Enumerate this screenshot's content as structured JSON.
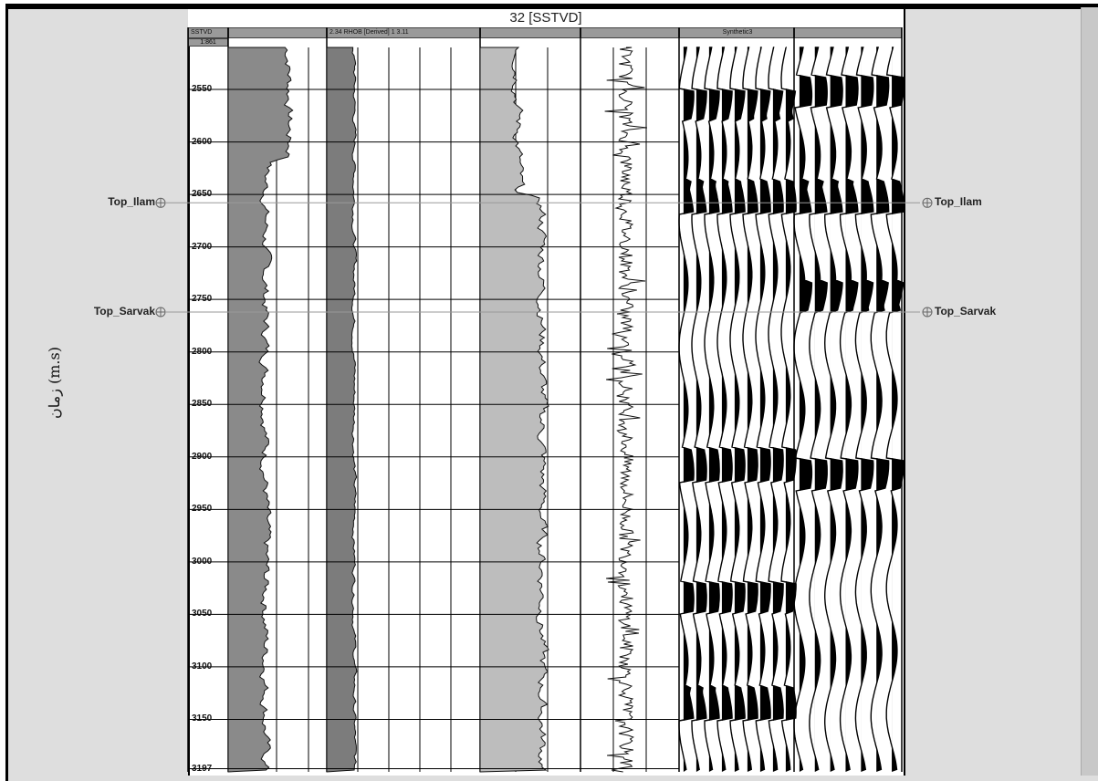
{
  "title": "32 [SSTVD]",
  "axis_label": "زمان (m.s)",
  "scale_label": "1:861",
  "track_headers": [
    {
      "id": "sstvd",
      "label": "SSTVD"
    },
    {
      "id": "gr",
      "label": ""
    },
    {
      "id": "rhob",
      "label": "2.34  RHOB [Derived]  1    3.11"
    },
    {
      "id": "log3",
      "label": ""
    },
    {
      "id": "log4",
      "label": ""
    },
    {
      "id": "synth1",
      "label": "Synthetic3"
    },
    {
      "id": "synth2",
      "label": ""
    }
  ],
  "depth_ticks": [
    "2550",
    "2600",
    "2650",
    "2700",
    "2750",
    "2800",
    "2850",
    "2900",
    "2950",
    "3000",
    "3050",
    "3100",
    "3150",
    "3197"
  ],
  "markers": [
    {
      "name": "Top_Ilam",
      "depth": 2658
    },
    {
      "name": "Top_Sarvak",
      "depth": 2762
    }
  ],
  "colors": {
    "track_header": "#9a9a9a",
    "log_fill": "#6f6f6f",
    "grid": "#000000",
    "marker_line": "#999999"
  }
}
